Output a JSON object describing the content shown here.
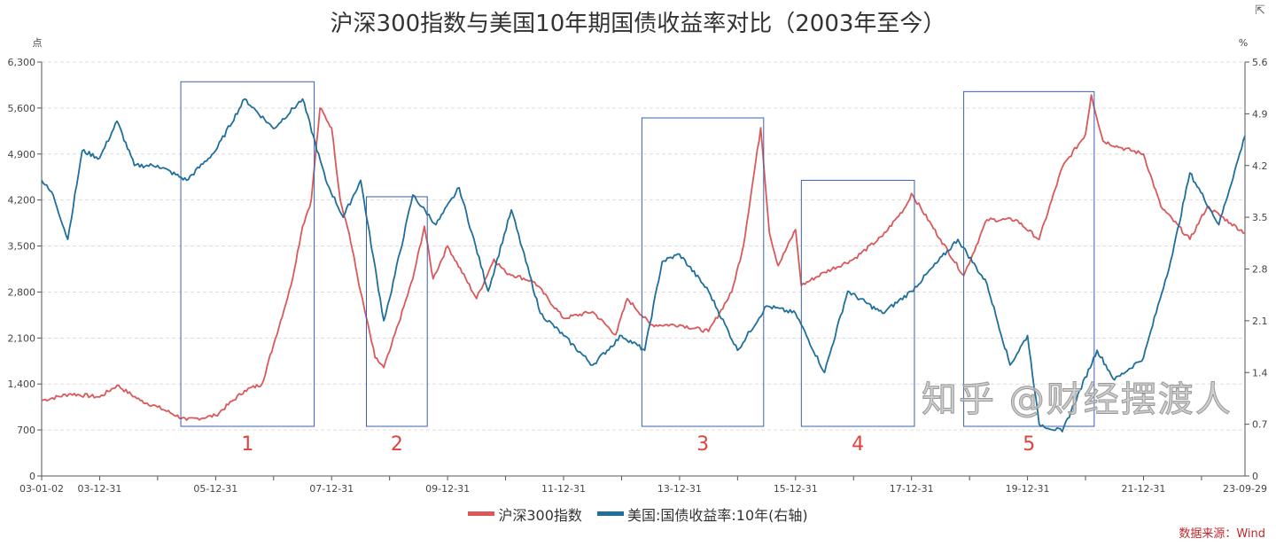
{
  "title": "沪深300指数与美国10年期国债收益率对比（2003年至今）",
  "expand_icon": "external-link-icon",
  "source": "数据来源：Wind",
  "watermark": "知乎 @财经摆渡人",
  "chart_data": {
    "type": "line",
    "title": "沪深300指数与美国10年期国债收益率对比（2003年至今）",
    "left_axis": {
      "unit": "点",
      "range": [
        0,
        6300
      ],
      "ticks": [
        "0",
        "700",
        "1,400",
        "2,100",
        "2,800",
        "3,500",
        "4,200",
        "4,900",
        "5,600",
        "6,300"
      ]
    },
    "right_axis": {
      "unit": "%",
      "range": [
        0,
        5.6
      ],
      "ticks": [
        "0",
        "0.7",
        "1.4",
        "2.1",
        "2.8",
        "3.5",
        "4.2",
        "4.9",
        "5.6"
      ]
    },
    "x_ticks": [
      "03-01-02",
      "03-12-31",
      "05-12-31",
      "07-12-31",
      "09-12-31",
      "11-12-31",
      "13-12-31",
      "15-12-31",
      "17-12-31",
      "19-12-31",
      "21-12-31",
      "23-09-29"
    ],
    "x_range": [
      "2003-01-02",
      "2023-09-29"
    ],
    "grid": "horizontal dashed",
    "legend_position": "bottom",
    "series": [
      {
        "name": "沪深300指数",
        "axis": "left",
        "color": "#d9595b",
        "points": [
          [
            2003.0,
            1150
          ],
          [
            2003.5,
            1250
          ],
          [
            2004.0,
            1200
          ],
          [
            2004.3,
            1380
          ],
          [
            2004.7,
            1150
          ],
          [
            2005.0,
            1050
          ],
          [
            2005.5,
            850
          ],
          [
            2006.0,
            920
          ],
          [
            2006.5,
            1300
          ],
          [
            2006.8,
            1400
          ],
          [
            2007.0,
            2000
          ],
          [
            2007.3,
            2900
          ],
          [
            2007.5,
            3800
          ],
          [
            2007.65,
            4200
          ],
          [
            2007.8,
            5600
          ],
          [
            2008.0,
            5300
          ],
          [
            2008.15,
            4200
          ],
          [
            2008.3,
            3700
          ],
          [
            2008.5,
            2800
          ],
          [
            2008.75,
            1800
          ],
          [
            2008.9,
            1650
          ],
          [
            2009.0,
            1900
          ],
          [
            2009.4,
            3000
          ],
          [
            2009.6,
            3800
          ],
          [
            2009.75,
            3000
          ],
          [
            2010.0,
            3500
          ],
          [
            2010.5,
            2700
          ],
          [
            2010.8,
            3300
          ],
          [
            2011.0,
            3100
          ],
          [
            2011.5,
            2950
          ],
          [
            2012.0,
            2400
          ],
          [
            2012.5,
            2500
          ],
          [
            2012.9,
            2150
          ],
          [
            2013.1,
            2700
          ],
          [
            2013.5,
            2300
          ],
          [
            2014.0,
            2300
          ],
          [
            2014.5,
            2200
          ],
          [
            2014.9,
            2800
          ],
          [
            2015.1,
            3500
          ],
          [
            2015.4,
            5300
          ],
          [
            2015.55,
            3700
          ],
          [
            2015.7,
            3200
          ],
          [
            2016.0,
            3750
          ],
          [
            2016.1,
            2900
          ],
          [
            2016.5,
            3100
          ],
          [
            2017.0,
            3300
          ],
          [
            2017.5,
            3650
          ],
          [
            2017.9,
            4100
          ],
          [
            2018.0,
            4300
          ],
          [
            2018.5,
            3600
          ],
          [
            2018.9,
            3050
          ],
          [
            2019.3,
            3900
          ],
          [
            2019.8,
            3900
          ],
          [
            2020.2,
            3600
          ],
          [
            2020.6,
            4700
          ],
          [
            2021.0,
            5200
          ],
          [
            2021.1,
            5800
          ],
          [
            2021.3,
            5100
          ],
          [
            2021.6,
            5000
          ],
          [
            2022.0,
            4900
          ],
          [
            2022.3,
            4100
          ],
          [
            2022.8,
            3600
          ],
          [
            2023.1,
            4100
          ],
          [
            2023.5,
            3850
          ],
          [
            2023.75,
            3700
          ]
        ]
      },
      {
        "name": "美国:国债收益率:10年(右轴)",
        "axis": "right",
        "color": "#1f6f9a",
        "points": [
          [
            2003.0,
            4.0
          ],
          [
            2003.2,
            3.8
          ],
          [
            2003.45,
            3.2
          ],
          [
            2003.7,
            4.4
          ],
          [
            2004.0,
            4.3
          ],
          [
            2004.3,
            4.8
          ],
          [
            2004.6,
            4.2
          ],
          [
            2005.0,
            4.2
          ],
          [
            2005.5,
            4.0
          ],
          [
            2006.0,
            4.4
          ],
          [
            2006.5,
            5.1
          ],
          [
            2007.0,
            4.7
          ],
          [
            2007.5,
            5.1
          ],
          [
            2007.9,
            4.0
          ],
          [
            2008.2,
            3.5
          ],
          [
            2008.5,
            4.0
          ],
          [
            2008.9,
            2.1
          ],
          [
            2009.0,
            2.4
          ],
          [
            2009.4,
            3.8
          ],
          [
            2009.8,
            3.4
          ],
          [
            2010.2,
            3.9
          ],
          [
            2010.7,
            2.5
          ],
          [
            2011.1,
            3.6
          ],
          [
            2011.6,
            2.2
          ],
          [
            2012.0,
            1.9
          ],
          [
            2012.5,
            1.5
          ],
          [
            2013.0,
            1.9
          ],
          [
            2013.4,
            1.7
          ],
          [
            2013.7,
            2.9
          ],
          [
            2014.0,
            3.0
          ],
          [
            2014.5,
            2.5
          ],
          [
            2015.0,
            1.7
          ],
          [
            2015.5,
            2.3
          ],
          [
            2016.0,
            2.2
          ],
          [
            2016.5,
            1.4
          ],
          [
            2016.9,
            2.5
          ],
          [
            2017.5,
            2.2
          ],
          [
            2018.0,
            2.5
          ],
          [
            2018.8,
            3.2
          ],
          [
            2019.3,
            2.6
          ],
          [
            2019.7,
            1.5
          ],
          [
            2020.0,
            1.9
          ],
          [
            2020.2,
            0.7
          ],
          [
            2020.6,
            0.6
          ],
          [
            2021.2,
            1.7
          ],
          [
            2021.5,
            1.3
          ],
          [
            2022.0,
            1.6
          ],
          [
            2022.5,
            3.0
          ],
          [
            2022.8,
            4.1
          ],
          [
            2023.3,
            3.4
          ],
          [
            2023.75,
            4.6
          ]
        ]
      }
    ],
    "annotations": [
      {
        "label": "1",
        "from": 2005.4,
        "to": 2007.7,
        "top_left": 6000
      },
      {
        "label": "2",
        "from": 2008.6,
        "to": 2009.65,
        "top_left": 4250
      },
      {
        "label": "3",
        "from": 2013.35,
        "to": 2015.45,
        "top_left": 5450
      },
      {
        "label": "4",
        "from": 2016.1,
        "to": 2018.05,
        "top_left": 4500
      },
      {
        "label": "5",
        "from": 2018.9,
        "to": 2021.15,
        "top_left": 5850
      }
    ]
  }
}
